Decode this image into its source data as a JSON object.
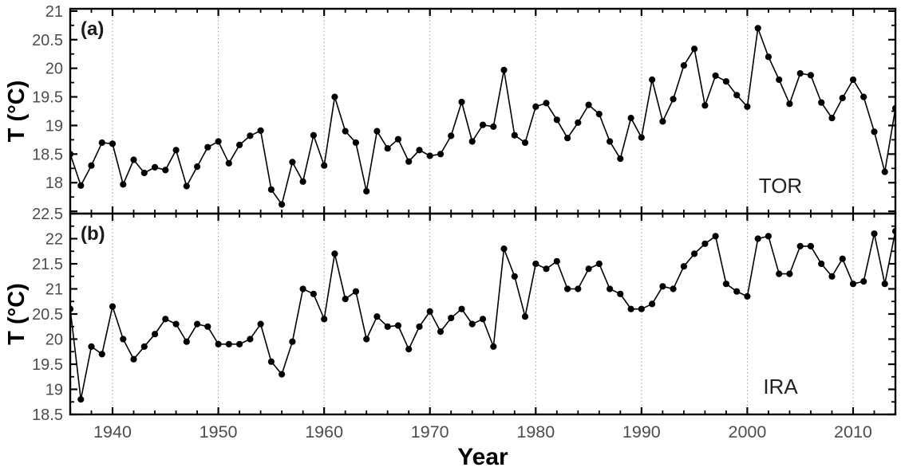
{
  "figure": {
    "xlabel": "Year",
    "colors": {
      "background": "#ffffff",
      "axis": "#000000",
      "line": "#000000",
      "marker": "#000000",
      "tick_label": "#4d4d4d",
      "grid": "#8a8a8a",
      "panel_label": "#1a1a1a",
      "station_label": "#222222",
      "axis_title": "#000000"
    }
  },
  "chart_data": {
    "type": "line",
    "xlabel": "Year",
    "xlim": [
      1936,
      2014
    ],
    "x_major_ticks": [
      1940,
      1950,
      1960,
      1970,
      1980,
      1990,
      2000,
      2010
    ],
    "x_major_tick_labels": [
      "1940",
      "1950",
      "1960",
      "1970",
      "1980",
      "1990",
      "2000",
      "2010"
    ],
    "x_minor_step": 2,
    "grid": "vertical-dotted-at-decades",
    "legend_position": "none",
    "marker": "filled-circle",
    "years": [
      1936,
      1937,
      1938,
      1939,
      1940,
      1941,
      1942,
      1943,
      1944,
      1945,
      1946,
      1947,
      1948,
      1949,
      1950,
      1951,
      1952,
      1953,
      1954,
      1955,
      1956,
      1957,
      1958,
      1959,
      1960,
      1961,
      1962,
      1963,
      1964,
      1965,
      1966,
      1967,
      1968,
      1969,
      1970,
      1971,
      1972,
      1973,
      1974,
      1975,
      1976,
      1977,
      1978,
      1979,
      1980,
      1981,
      1982,
      1983,
      1984,
      1985,
      1986,
      1987,
      1988,
      1989,
      1990,
      1991,
      1992,
      1993,
      1994,
      1995,
      1996,
      1997,
      1998,
      1999,
      2000,
      2001,
      2002,
      2003,
      2004,
      2005,
      2006,
      2007,
      2008,
      2009,
      2010,
      2011,
      2012,
      2013,
      2014
    ],
    "panels": [
      {
        "label": "(a)",
        "station": "TOR",
        "ylabel": "T (°C)",
        "ylim": [
          17.46,
          21.04
        ],
        "ytick_major_step": 0.5,
        "ytick_minor_step": 0.25,
        "ytick_labels": [
          {
            "value": 18,
            "label": "18"
          },
          {
            "value": 18.5,
            "label": "18.5"
          },
          {
            "value": 19,
            "label": "19"
          },
          {
            "value": 19.5,
            "label": "19.5"
          },
          {
            "value": 20,
            "label": "20"
          },
          {
            "value": 20.5,
            "label": "20.5"
          },
          {
            "value": 21,
            "label": "21"
          }
        ],
        "values": [
          18.5,
          17.95,
          18.3,
          18.7,
          18.68,
          17.97,
          18.4,
          18.17,
          18.27,
          18.22,
          18.57,
          17.94,
          18.28,
          18.62,
          18.72,
          18.34,
          18.66,
          18.82,
          18.91,
          17.88,
          17.62,
          18.36,
          18.02,
          18.83,
          18.3,
          19.5,
          18.9,
          18.7,
          17.85,
          18.9,
          18.6,
          18.76,
          18.37,
          18.57,
          18.47,
          18.5,
          18.82,
          19.41,
          18.72,
          19.01,
          18.98,
          19.97,
          18.83,
          18.7,
          19.33,
          19.39,
          19.1,
          18.78,
          19.05,
          19.36,
          19.2,
          18.72,
          18.42,
          19.13,
          18.79,
          19.8,
          19.07,
          19.46,
          20.05,
          20.34,
          19.35,
          19.87,
          19.77,
          19.53,
          19.33,
          20.7,
          20.2,
          19.8,
          19.38,
          19.91,
          19.88,
          19.4,
          19.13,
          19.48,
          19.8,
          19.5,
          18.89,
          18.19,
          19.3
        ]
      },
      {
        "label": "(b)",
        "station": "IRA",
        "ylabel": "T (°C)",
        "ylim": [
          18.5,
          22.5
        ],
        "ytick_major_step": 0.5,
        "ytick_minor_step": 0.25,
        "ytick_labels": [
          {
            "value": 18.5,
            "label": "18.5"
          },
          {
            "value": 19,
            "label": "19"
          },
          {
            "value": 19.5,
            "label": "19.5"
          },
          {
            "value": 20,
            "label": "20"
          },
          {
            "value": 20.5,
            "label": "20.5"
          },
          {
            "value": 21,
            "label": "21"
          },
          {
            "value": 21.5,
            "label": "21.5"
          },
          {
            "value": 22,
            "label": "22"
          },
          {
            "value": 22.5,
            "label": "22.5"
          }
        ],
        "values": [
          20.6,
          18.8,
          19.85,
          19.7,
          20.65,
          20.0,
          19.6,
          19.85,
          20.1,
          20.4,
          20.3,
          19.95,
          20.3,
          20.25,
          19.9,
          19.9,
          19.9,
          20.0,
          20.3,
          19.55,
          19.3,
          19.95,
          21.0,
          20.9,
          20.4,
          21.7,
          20.8,
          20.95,
          20.0,
          20.45,
          20.25,
          20.27,
          19.8,
          20.25,
          20.55,
          20.15,
          20.42,
          20.6,
          20.3,
          20.4,
          19.85,
          21.8,
          21.25,
          20.45,
          21.5,
          21.4,
          21.55,
          21.0,
          21.0,
          21.4,
          21.5,
          21.0,
          20.9,
          20.6,
          20.6,
          20.7,
          21.05,
          21.0,
          21.45,
          21.7,
          21.9,
          22.05,
          21.1,
          20.95,
          20.85,
          22.0,
          22.05,
          21.3,
          21.3,
          21.85,
          21.85,
          21.5,
          21.25,
          21.6,
          21.1,
          21.15,
          22.1,
          21.1,
          22.15
        ]
      }
    ]
  }
}
